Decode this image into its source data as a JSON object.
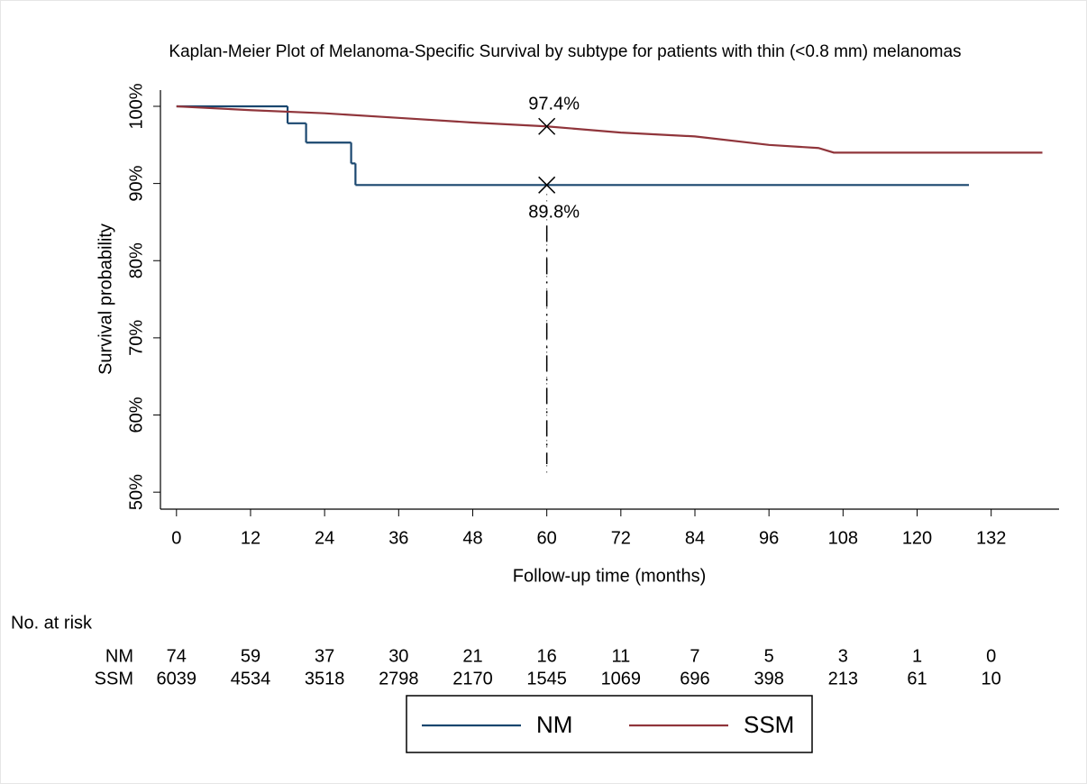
{
  "chart_data": {
    "type": "line",
    "title": "Kaplan-Meier Plot of Melanoma-Specific Survival by subtype for patients with thin (<0.8 mm) melanomas",
    "x_label": "Follow-up time (months)",
    "y_label": "Survival probability",
    "xlim": [
      -2.6,
      143
    ],
    "ylim": [
      47.8,
      102.1
    ],
    "xticks": [
      0,
      12,
      24,
      36,
      48,
      60,
      72,
      84,
      96,
      108,
      120,
      132
    ],
    "yticks": [
      {
        "value": 50,
        "label": "50%"
      },
      {
        "value": 60,
        "label": "60%"
      },
      {
        "value": 70,
        "label": "70%"
      },
      {
        "value": 80,
        "label": "80%"
      },
      {
        "value": 90,
        "label": "90%"
      },
      {
        "value": 100,
        "label": "100%"
      }
    ],
    "series": [
      {
        "name": "NM",
        "color": "#1a476f",
        "step": true,
        "x": [
          0,
          18,
          21,
          28.3,
          29,
          128.4
        ],
        "values": [
          100,
          97.8,
          95.3,
          92.6,
          89.8,
          89.8
        ]
      },
      {
        "name": "SSM",
        "color": "#90353b",
        "step": false,
        "x": [
          0,
          12,
          24,
          36,
          48,
          60,
          72,
          84,
          96,
          104,
          106.5,
          140.3
        ],
        "values": [
          100,
          99.5,
          99.1,
          98.5,
          97.9,
          97.4,
          96.6,
          96.1,
          95.0,
          94.6,
          94.0,
          94.0
        ]
      }
    ],
    "annotations": [
      {
        "x": 60,
        "y": 97.4,
        "label": "97.4%"
      },
      {
        "x": 60,
        "y": 89.8,
        "label": "89.8%"
      }
    ],
    "risk_table": {
      "title": "No. at risk",
      "rows": [
        {
          "name": "NM",
          "values": [
            74,
            59,
            37,
            30,
            21,
            16,
            11,
            7,
            5,
            3,
            1,
            0
          ]
        },
        {
          "name": "SSM",
          "values": [
            6039,
            4534,
            3518,
            2798,
            2170,
            1545,
            1069,
            696,
            398,
            213,
            61,
            10
          ]
        }
      ]
    }
  }
}
